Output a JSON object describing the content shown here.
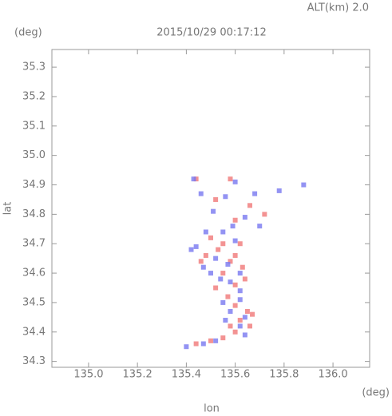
{
  "chart_data": {
    "type": "scatter",
    "subtitle": "ALT(km) 2.0",
    "y_unit": "(deg)",
    "title": "2015/10/29 00:17:12",
    "y_label": "lat",
    "x_label": "lon",
    "x_unit": "(deg)",
    "xlim": [
      134.85,
      136.15
    ],
    "ylim": [
      34.28,
      35.36
    ],
    "xticks": [
      {
        "value": 135,
        "label": "135.0"
      },
      135.2,
      135.4,
      135.6,
      135.8,
      {
        "value": 136,
        "label": "136.0"
      }
    ],
    "yticks": [
      34.3,
      34.4,
      34.5,
      34.6,
      34.7,
      34.8,
      34.9,
      {
        "value": 35,
        "label": "35.0"
      },
      35.1,
      35.2,
      35.3
    ],
    "series": [
      {
        "color": "#f07878",
        "x": [
          135.44,
          135.58,
          135.52,
          135.66,
          135.72,
          135.6,
          135.5,
          135.55,
          135.6,
          135.58,
          135.48,
          135.63,
          135.55,
          135.6,
          135.52,
          135.57,
          135.6,
          135.65,
          135.67,
          135.62,
          135.58,
          135.66,
          135.6,
          135.55,
          135.44,
          135.5,
          135.46,
          135.62,
          135.53,
          135.64
        ],
        "values": [
          34.92,
          34.92,
          34.85,
          34.83,
          34.8,
          34.78,
          34.72,
          34.7,
          34.66,
          34.64,
          34.66,
          34.62,
          34.6,
          34.56,
          34.55,
          34.52,
          34.49,
          34.47,
          34.46,
          34.44,
          34.42,
          34.42,
          34.4,
          34.38,
          34.36,
          34.37,
          34.64,
          34.7,
          34.68,
          34.58
        ]
      },
      {
        "color": "#7878f0",
        "x": [
          135.43,
          135.6,
          135.46,
          135.56,
          135.68,
          135.78,
          135.88,
          135.51,
          135.64,
          135.7,
          135.48,
          135.55,
          135.6,
          135.44,
          135.52,
          135.57,
          135.47,
          135.62,
          135.5,
          135.54,
          135.58,
          135.62,
          135.55,
          135.62,
          135.58,
          135.64,
          135.56,
          135.62,
          135.64,
          135.4,
          135.47,
          135.52,
          135.42,
          135.59
        ],
        "values": [
          34.92,
          34.91,
          34.87,
          34.86,
          34.87,
          34.88,
          34.9,
          34.81,
          34.79,
          34.76,
          34.74,
          34.74,
          34.71,
          34.69,
          34.65,
          34.63,
          34.62,
          34.6,
          34.6,
          34.58,
          34.57,
          34.54,
          34.5,
          34.51,
          34.47,
          34.45,
          34.44,
          34.42,
          34.39,
          34.35,
          34.36,
          34.37,
          34.68,
          34.76
        ]
      }
    ]
  }
}
